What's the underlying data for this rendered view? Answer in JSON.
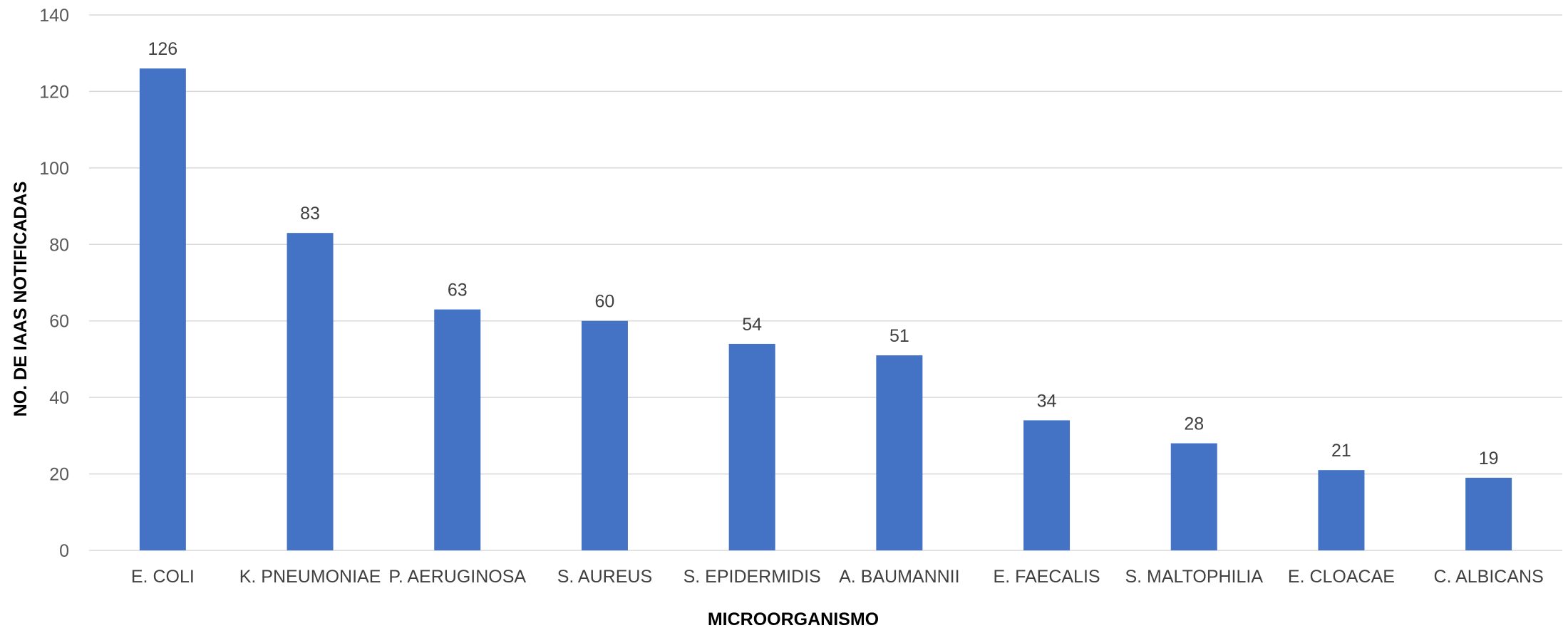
{
  "chart_data": {
    "type": "bar",
    "categories": [
      "E. COLI",
      "K. PNEUMONIAE",
      "P. AERUGINOSA",
      "S. AUREUS",
      "S. EPIDERMIDIS",
      "A. BAUMANNII",
      "E. FAECALIS",
      "S. MALTOPHILIA",
      "E. CLOACAE",
      "C. ALBICANS"
    ],
    "values": [
      126,
      83,
      63,
      60,
      54,
      51,
      34,
      28,
      21,
      19
    ],
    "title": "",
    "xlabel": "MICROORGANISMO",
    "ylabel": "NO. DE IAAS NOTIFICADAS",
    "ylim": [
      0,
      140
    ],
    "yticks": [
      0,
      20,
      40,
      60,
      80,
      100,
      120,
      140
    ],
    "grid": true,
    "legend": "none",
    "data_labels": true,
    "colors": {
      "bar": "#4472C4"
    }
  }
}
